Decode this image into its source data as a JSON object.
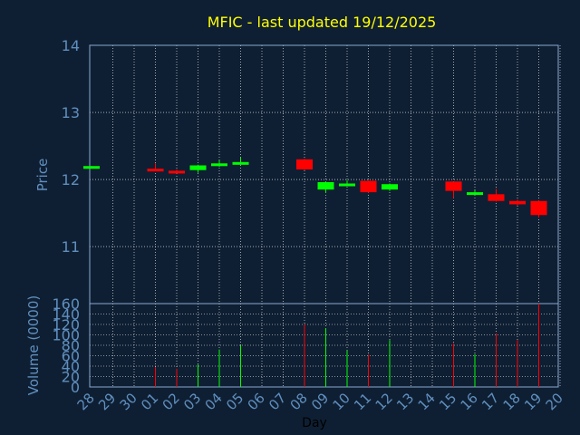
{
  "chart_data": [
    {
      "type": "candlestick",
      "title": "MFIC - last updated 19/12/2025",
      "ylabel": "Price",
      "ylim": [
        10.15,
        14
      ],
      "yticks": [
        11,
        12,
        13,
        14
      ],
      "grid": true,
      "colors": {
        "up": "#00ff00",
        "down": "#ff0000",
        "title": "#ffff00",
        "axis_text": "#5f8fbf",
        "grid": "#ffffff",
        "background": "#0f1f33",
        "frame": "#8aaad0"
      },
      "x": [
        "28",
        "29",
        "30",
        "01",
        "02",
        "03",
        "04",
        "05",
        "06",
        "07",
        "08",
        "09",
        "10",
        "11",
        "12",
        "13",
        "14",
        "15",
        "16",
        "17",
        "18",
        "19",
        "20"
      ],
      "candles": [
        {
          "x": "28",
          "open": 12.18,
          "close": 12.2,
          "high": 12.2,
          "low": 12.18,
          "dir": "up"
        },
        {
          "x": "01",
          "open": 12.16,
          "close": 12.13,
          "high": 12.24,
          "low": 12.13,
          "dir": "down"
        },
        {
          "x": "02",
          "open": 12.13,
          "close": 12.1,
          "high": 12.15,
          "low": 12.09,
          "dir": "down"
        },
        {
          "x": "03",
          "open": 12.14,
          "close": 12.21,
          "high": 12.22,
          "low": 12.1,
          "dir": "up"
        },
        {
          "x": "04",
          "open": 12.22,
          "close": 12.24,
          "high": 12.29,
          "low": 12.19,
          "dir": "up"
        },
        {
          "x": "05",
          "open": 12.23,
          "close": 12.26,
          "high": 12.33,
          "low": 12.22,
          "dir": "up"
        },
        {
          "x": "08",
          "open": 12.3,
          "close": 12.15,
          "high": 12.31,
          "low": 12.14,
          "dir": "down"
        },
        {
          "x": "09",
          "open": 11.85,
          "close": 11.96,
          "high": 11.97,
          "low": 11.8,
          "dir": "up"
        },
        {
          "x": "10",
          "open": 11.92,
          "close": 11.94,
          "high": 11.99,
          "low": 11.9,
          "dir": "up"
        },
        {
          "x": "11",
          "open": 11.98,
          "close": 11.81,
          "high": 11.99,
          "low": 11.8,
          "dir": "down"
        },
        {
          "x": "12",
          "open": 11.85,
          "close": 11.93,
          "high": 11.94,
          "low": 11.83,
          "dir": "up"
        },
        {
          "x": "15",
          "open": 11.97,
          "close": 11.83,
          "high": 11.97,
          "low": 11.72,
          "dir": "down"
        },
        {
          "x": "16",
          "open": 11.79,
          "close": 11.81,
          "high": 11.84,
          "low": 11.78,
          "dir": "up"
        },
        {
          "x": "17",
          "open": 11.78,
          "close": 11.68,
          "high": 11.86,
          "low": 11.67,
          "dir": "down"
        },
        {
          "x": "18",
          "open": 11.68,
          "close": 11.63,
          "high": 11.7,
          "low": 11.61,
          "dir": "down"
        },
        {
          "x": "19",
          "open": 11.68,
          "close": 11.47,
          "high": 11.69,
          "low": 11.43,
          "dir": "down"
        }
      ]
    },
    {
      "type": "bar",
      "xlabel": "Day",
      "ylabel": "Volume (0000)",
      "ylim": [
        0,
        160
      ],
      "yticks": [
        0,
        20,
        40,
        60,
        80,
        100,
        120,
        140,
        160
      ],
      "grid": true,
      "x": [
        "28",
        "29",
        "30",
        "01",
        "02",
        "03",
        "04",
        "05",
        "06",
        "07",
        "08",
        "09",
        "10",
        "11",
        "12",
        "13",
        "14",
        "15",
        "16",
        "17",
        "18",
        "19",
        "20"
      ],
      "bars": [
        {
          "x": "01",
          "value": 38,
          "dir": "down"
        },
        {
          "x": "02",
          "value": 35,
          "dir": "down"
        },
        {
          "x": "03",
          "value": 43,
          "dir": "up"
        },
        {
          "x": "04",
          "value": 72,
          "dir": "up"
        },
        {
          "x": "05",
          "value": 80,
          "dir": "up"
        },
        {
          "x": "08",
          "value": 120,
          "dir": "down"
        },
        {
          "x": "09",
          "value": 113,
          "dir": "up"
        },
        {
          "x": "10",
          "value": 70,
          "dir": "up"
        },
        {
          "x": "11",
          "value": 62,
          "dir": "down"
        },
        {
          "x": "12",
          "value": 90,
          "dir": "up"
        },
        {
          "x": "15",
          "value": 84,
          "dir": "down"
        },
        {
          "x": "16",
          "value": 63,
          "dir": "up"
        },
        {
          "x": "17",
          "value": 103,
          "dir": "down"
        },
        {
          "x": "18",
          "value": 90,
          "dir": "down"
        },
        {
          "x": "19",
          "value": 160,
          "dir": "down"
        }
      ]
    }
  ]
}
